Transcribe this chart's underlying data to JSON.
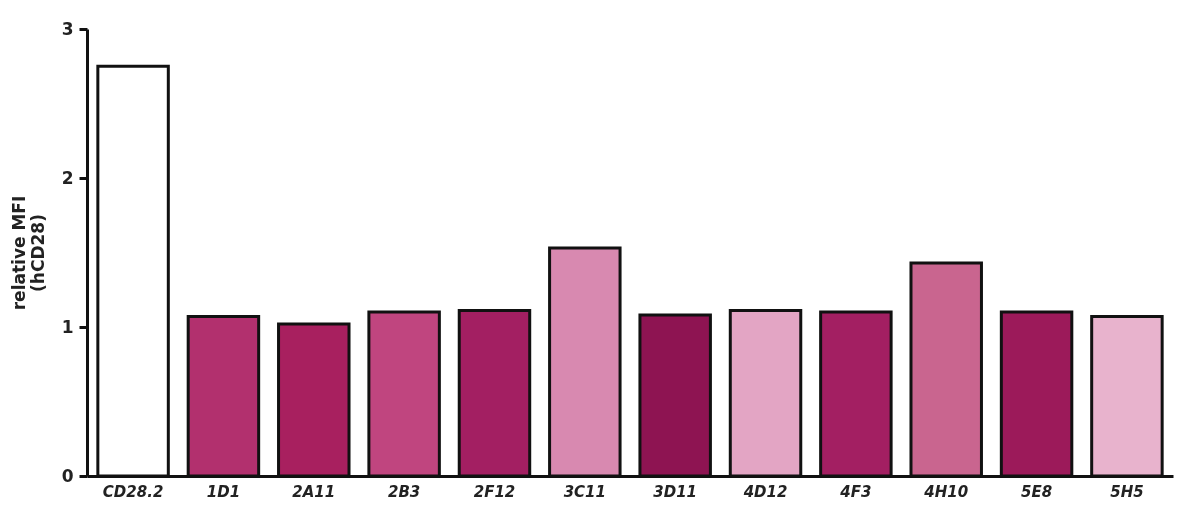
{
  "chart_data": {
    "type": "bar",
    "ylabel": [
      "relative MFI",
      "(hCD28)"
    ],
    "categories": [
      "CD28.2",
      "1D1",
      "2A11",
      "2B3",
      "2F12",
      "3C11",
      "3D11",
      "4D12",
      "4F3",
      "4H10",
      "5E8",
      "5H5"
    ],
    "values": [
      2.75,
      1.07,
      1.02,
      1.1,
      1.11,
      1.53,
      1.08,
      1.11,
      1.1,
      1.43,
      1.1,
      1.07
    ],
    "colors": [
      "#ffffff",
      "#b2306e",
      "#a8205f",
      "#c0457f",
      "#a31f62",
      "#d889b0",
      "#8e1452",
      "#e3a5c4",
      "#a31f62",
      "#c9658f",
      "#9c1a5a",
      "#e8b3cd"
    ],
    "ylim": [
      0,
      3
    ],
    "yticks": [
      0,
      1,
      2,
      3
    ],
    "grid": false
  }
}
